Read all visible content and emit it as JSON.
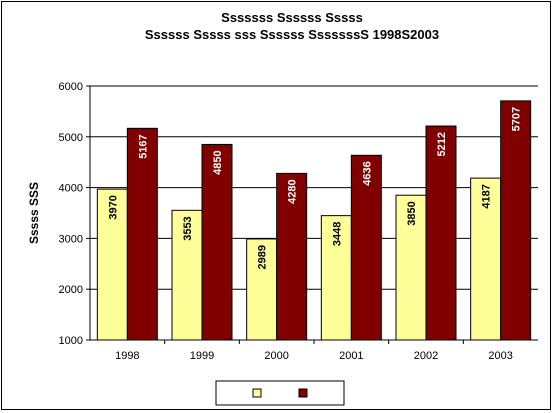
{
  "chart_data": {
    "type": "bar",
    "title": "Sssssss Ssssss Sssss",
    "subtitle": "Ssssss Sssss sss Ssssss SssssssS 1998S2003",
    "xlabel": "",
    "ylabel": "Sssss SSS",
    "categories": [
      "1998",
      "1999",
      "2000",
      "2001",
      "2002",
      "2003"
    ],
    "series": [
      {
        "values": [
          3970,
          3553,
          2989,
          3448,
          3850,
          4187
        ],
        "color": "#FFFF99",
        "label_color": "#000000"
      },
      {
        "values": [
          5167,
          4850,
          4280,
          4636,
          5212,
          5707
        ],
        "color": "#800000",
        "label_color": "#FFFFFF"
      }
    ],
    "ylim": [
      1000,
      6000
    ],
    "yticks": [
      1000,
      2000,
      3000,
      4000,
      5000,
      6000
    ],
    "grid": true,
    "legend_position": "bottom",
    "plot_background": "#ffffff",
    "border_color": "#000000"
  }
}
